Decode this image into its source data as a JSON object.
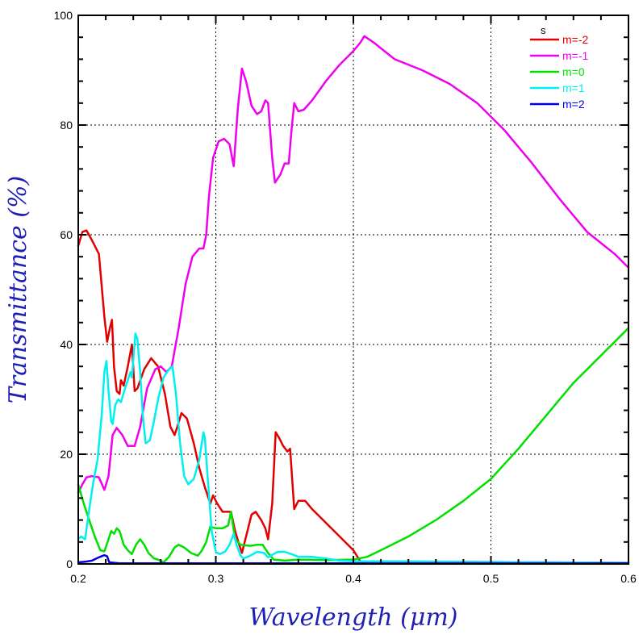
{
  "chart_data": {
    "type": "line",
    "title": "",
    "xlabel": "Wavelength (μm)",
    "ylabel": "Transmittance (%)",
    "xlim": [
      0.2,
      0.6
    ],
    "ylim": [
      0,
      100
    ],
    "x_ticks": [
      "0.2",
      "0.3",
      "0.4",
      "0.5",
      "0.6"
    ],
    "y_ticks": [
      "0",
      "20",
      "40",
      "60",
      "80",
      "100"
    ],
    "grid": true,
    "legend_title": "s",
    "legend_position": "top-right",
    "series": [
      {
        "name": "m=-2",
        "color": "#e00000",
        "points": [
          [
            0.2,
            58
          ],
          [
            0.203,
            60.5
          ],
          [
            0.206,
            60.8
          ],
          [
            0.21,
            59
          ],
          [
            0.215,
            56.5
          ],
          [
            0.219,
            45
          ],
          [
            0.221,
            40.5
          ],
          [
            0.223,
            43
          ],
          [
            0.2245,
            44.5
          ],
          [
            0.226,
            36
          ],
          [
            0.228,
            31.5
          ],
          [
            0.23,
            31
          ],
          [
            0.231,
            33.5
          ],
          [
            0.233,
            32.5
          ],
          [
            0.236,
            36
          ],
          [
            0.239,
            40
          ],
          [
            0.241,
            31.5
          ],
          [
            0.243,
            32
          ],
          [
            0.248,
            35.5
          ],
          [
            0.253,
            37.5
          ],
          [
            0.258,
            36
          ],
          [
            0.263,
            31
          ],
          [
            0.267,
            25
          ],
          [
            0.27,
            23.5
          ],
          [
            0.272,
            25
          ],
          [
            0.275,
            27.5
          ],
          [
            0.279,
            26.5
          ],
          [
            0.284,
            22
          ],
          [
            0.288,
            17.5
          ],
          [
            0.292,
            14
          ],
          [
            0.296,
            11
          ],
          [
            0.298,
            12.5
          ],
          [
            0.301,
            11
          ],
          [
            0.305,
            9.5
          ],
          [
            0.311,
            9.5
          ],
          [
            0.314,
            6
          ],
          [
            0.317,
            3.5
          ],
          [
            0.319,
            2
          ],
          [
            0.322,
            5
          ],
          [
            0.326,
            9
          ],
          [
            0.329,
            9.5
          ],
          [
            0.333,
            8
          ],
          [
            0.336,
            6.5
          ],
          [
            0.338,
            4.5
          ],
          [
            0.341,
            11
          ],
          [
            0.3435,
            24
          ],
          [
            0.346,
            23
          ],
          [
            0.349,
            21.5
          ],
          [
            0.352,
            20.5
          ],
          [
            0.354,
            21
          ],
          [
            0.357,
            10
          ],
          [
            0.36,
            11.5
          ],
          [
            0.365,
            11.5
          ],
          [
            0.37,
            10
          ],
          [
            0.38,
            7.5
          ],
          [
            0.39,
            5
          ],
          [
            0.4,
            2.5
          ],
          [
            0.405,
            0.5
          ],
          [
            0.6,
            0.2
          ]
        ]
      },
      {
        "name": "m=-1",
        "color": "#ef00ef",
        "points": [
          [
            0.2,
            13
          ],
          [
            0.203,
            14.5
          ],
          [
            0.206,
            15.8
          ],
          [
            0.21,
            16
          ],
          [
            0.215,
            15.8
          ],
          [
            0.219,
            13.5
          ],
          [
            0.222,
            16
          ],
          [
            0.225,
            23.5
          ],
          [
            0.228,
            24.8
          ],
          [
            0.232,
            23.5
          ],
          [
            0.236,
            21.5
          ],
          [
            0.241,
            21.5
          ],
          [
            0.245,
            25
          ],
          [
            0.25,
            32
          ],
          [
            0.256,
            35.5
          ],
          [
            0.26,
            36
          ],
          [
            0.264,
            35
          ],
          [
            0.268,
            36
          ],
          [
            0.273,
            43
          ],
          [
            0.278,
            51
          ],
          [
            0.283,
            56
          ],
          [
            0.288,
            57.5
          ],
          [
            0.291,
            57.5
          ],
          [
            0.293,
            60
          ],
          [
            0.295,
            67
          ],
          [
            0.298,
            74
          ],
          [
            0.302,
            77
          ],
          [
            0.306,
            77.5
          ],
          [
            0.31,
            76.5
          ],
          [
            0.313,
            72.5
          ],
          [
            0.316,
            83
          ],
          [
            0.319,
            90.3
          ],
          [
            0.322,
            88
          ],
          [
            0.326,
            83.5
          ],
          [
            0.33,
            82
          ],
          [
            0.333,
            82.5
          ],
          [
            0.336,
            84.5
          ],
          [
            0.338,
            84
          ],
          [
            0.341,
            74
          ],
          [
            0.343,
            69.5
          ],
          [
            0.347,
            71
          ],
          [
            0.35,
            73
          ],
          [
            0.353,
            73
          ],
          [
            0.355,
            79
          ],
          [
            0.357,
            84
          ],
          [
            0.36,
            82.5
          ],
          [
            0.364,
            82.8
          ],
          [
            0.37,
            84.5
          ],
          [
            0.38,
            88
          ],
          [
            0.39,
            91
          ],
          [
            0.4,
            93.5
          ],
          [
            0.405,
            95
          ],
          [
            0.408,
            96.2
          ],
          [
            0.415,
            95
          ],
          [
            0.43,
            92
          ],
          [
            0.45,
            90
          ],
          [
            0.47,
            87.5
          ],
          [
            0.49,
            84
          ],
          [
            0.51,
            79
          ],
          [
            0.53,
            73
          ],
          [
            0.55,
            66.5
          ],
          [
            0.57,
            60.5
          ],
          [
            0.59,
            56.5
          ],
          [
            0.6,
            54
          ]
        ]
      },
      {
        "name": "m=0",
        "color": "#00e000",
        "points": [
          [
            0.2,
            14.5
          ],
          [
            0.204,
            11
          ],
          [
            0.208,
            8
          ],
          [
            0.212,
            5
          ],
          [
            0.216,
            2.5
          ],
          [
            0.219,
            2.3
          ],
          [
            0.222,
            4.5
          ],
          [
            0.224,
            6
          ],
          [
            0.226,
            5.5
          ],
          [
            0.228,
            6.5
          ],
          [
            0.23,
            6
          ],
          [
            0.233,
            3.5
          ],
          [
            0.236,
            2.5
          ],
          [
            0.239,
            1.8
          ],
          [
            0.242,
            3.5
          ],
          [
            0.245,
            4.5
          ],
          [
            0.248,
            3.5
          ],
          [
            0.251,
            2
          ],
          [
            0.255,
            1
          ],
          [
            0.258,
            0.8
          ],
          [
            0.262,
            0.3
          ],
          [
            0.266,
            1.3
          ],
          [
            0.27,
            3
          ],
          [
            0.273,
            3.5
          ],
          [
            0.277,
            3
          ],
          [
            0.282,
            2
          ],
          [
            0.287,
            1.5
          ],
          [
            0.29,
            2.5
          ],
          [
            0.293,
            4
          ],
          [
            0.296,
            6.8
          ],
          [
            0.3,
            6.5
          ],
          [
            0.305,
            6.5
          ],
          [
            0.309,
            7
          ],
          [
            0.311,
            9.5
          ],
          [
            0.314,
            4.5
          ],
          [
            0.318,
            3.5
          ],
          [
            0.325,
            3.3
          ],
          [
            0.33,
            3.5
          ],
          [
            0.334,
            3.5
          ],
          [
            0.338,
            2
          ],
          [
            0.342,
            0.8
          ],
          [
            0.35,
            0.6
          ],
          [
            0.36,
            0.8
          ],
          [
            0.38,
            0.7
          ],
          [
            0.4,
            0.8
          ],
          [
            0.41,
            1.3
          ],
          [
            0.42,
            2.5
          ],
          [
            0.44,
            5
          ],
          [
            0.46,
            8
          ],
          [
            0.48,
            11.5
          ],
          [
            0.5,
            15.5
          ],
          [
            0.52,
            21
          ],
          [
            0.54,
            27
          ],
          [
            0.56,
            33
          ],
          [
            0.58,
            38
          ],
          [
            0.6,
            43
          ]
        ]
      },
      {
        "name": "m=1",
        "color": "#00f0f0",
        "points": [
          [
            0.2,
            4.5
          ],
          [
            0.202,
            5
          ],
          [
            0.205,
            4.5
          ],
          [
            0.208,
            10
          ],
          [
            0.211,
            15
          ],
          [
            0.214,
            19
          ],
          [
            0.217,
            27
          ],
          [
            0.219,
            35
          ],
          [
            0.2205,
            37
          ],
          [
            0.222,
            31.5
          ],
          [
            0.224,
            26
          ],
          [
            0.225,
            25.5
          ],
          [
            0.227,
            29
          ],
          [
            0.229,
            30
          ],
          [
            0.231,
            29.5
          ],
          [
            0.234,
            32
          ],
          [
            0.236,
            33.5
          ],
          [
            0.238,
            35
          ],
          [
            0.239,
            34
          ],
          [
            0.2415,
            42
          ],
          [
            0.243,
            41
          ],
          [
            0.245,
            35
          ],
          [
            0.247,
            27
          ],
          [
            0.249,
            22
          ],
          [
            0.252,
            22.5
          ],
          [
            0.255,
            26
          ],
          [
            0.258,
            30
          ],
          [
            0.262,
            34
          ],
          [
            0.266,
            35.5
          ],
          [
            0.2685,
            36
          ],
          [
            0.271,
            31
          ],
          [
            0.274,
            22
          ],
          [
            0.277,
            16
          ],
          [
            0.28,
            14.5
          ],
          [
            0.284,
            15.5
          ],
          [
            0.288,
            19
          ],
          [
            0.291,
            24
          ],
          [
            0.292,
            23
          ],
          [
            0.294,
            16
          ],
          [
            0.297,
            6
          ],
          [
            0.3,
            2.2
          ],
          [
            0.303,
            1.8
          ],
          [
            0.307,
            2.3
          ],
          [
            0.31,
            3.5
          ],
          [
            0.313,
            5.5
          ],
          [
            0.315,
            3.5
          ],
          [
            0.318,
            1.5
          ],
          [
            0.32,
            1
          ],
          [
            0.325,
            1.5
          ],
          [
            0.33,
            2.2
          ],
          [
            0.335,
            2
          ],
          [
            0.338,
            1.2
          ],
          [
            0.342,
            1.8
          ],
          [
            0.345,
            2.2
          ],
          [
            0.35,
            2.2
          ],
          [
            0.355,
            1.8
          ],
          [
            0.36,
            1.3
          ],
          [
            0.37,
            1.3
          ],
          [
            0.38,
            1
          ],
          [
            0.39,
            0.6
          ],
          [
            0.4,
            0.5
          ],
          [
            0.6,
            0.2
          ]
        ]
      },
      {
        "name": "m=2",
        "color": "#0000dd",
        "points": [
          [
            0.2,
            0.3
          ],
          [
            0.205,
            0.4
          ],
          [
            0.21,
            0.6
          ],
          [
            0.215,
            1.2
          ],
          [
            0.219,
            1.6
          ],
          [
            0.221,
            1.4
          ],
          [
            0.2225,
            0.3
          ],
          [
            0.23,
            0.1
          ],
          [
            0.6,
            0.1
          ]
        ]
      }
    ]
  }
}
